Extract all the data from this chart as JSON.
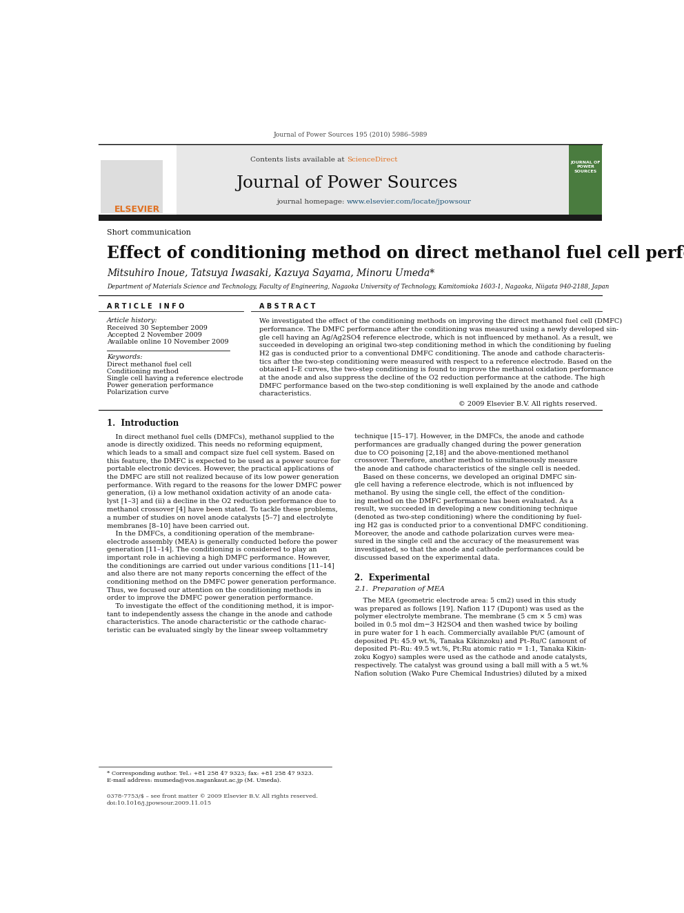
{
  "page_bg": "#ffffff",
  "header_citation": "Journal of Power Sources 195 (2010) 5986–5989",
  "journal_name": "Journal of Power Sources",
  "contents_text": "Contents lists available at ScienceDirect",
  "journal_homepage": "journal homepage: www.elsevier.com/locate/jpowsour",
  "article_type": "Short communication",
  "paper_title": "Effect of conditioning method on direct methanol fuel cell performance",
  "authors": "Mitsuhiro Inoue, Tatsuya Iwasaki, Kazuya Sayama, Minoru Umeda*",
  "affiliation": "Department of Materials Science and Technology, Faculty of Engineering, Nagaoka University of Technology, Kamitomioka 1603-1, Nagaoka, Niigata 940-2188, Japan",
  "article_info_header": "A R T I C L E   I N F O",
  "abstract_header": "A B S T R A C T",
  "article_history_label": "Article history:",
  "received": "Received 30 September 2009",
  "accepted": "Accepted 2 November 2009",
  "available": "Available online 10 November 2009",
  "keywords_label": "Keywords:",
  "keywords": [
    "Direct methanol fuel cell",
    "Conditioning method",
    "Single cell having a reference electrode",
    "Power generation performance",
    "Polarization curve"
  ],
  "abstract_text": "We investigated the effect of the conditioning methods on improving the direct methanol fuel cell (DMFC)\nperformance. The DMFC performance after the conditioning was measured using a newly developed sin-\ngle cell having an Ag/Ag2SO4 reference electrode, which is not influenced by methanol. As a result, we\nsucceeded in developing an original two-step conditioning method in which the conditioning by fueling\nH2 gas is conducted prior to a conventional DMFC conditioning. The anode and cathode characteris-\ntics after the two-step conditioning were measured with respect to a reference electrode. Based on the\nobtained I–E curves, the two-step conditioning is found to improve the methanol oxidation performance\nat the anode and also suppress the decline of the O2 reduction performance at the cathode. The high\nDMFC performance based on the two-step conditioning is well explained by the anode and cathode\ncharacteristics.",
  "copyright": "© 2009 Elsevier B.V. All rights reserved.",
  "section1_title": "1.  Introduction",
  "intro_left_p1": "    In direct methanol fuel cells (DMFCs), methanol supplied to the\nanode is directly oxidized. This needs no reforming equipment,\nwhich leads to a small and compact size fuel cell system. Based on\nthis feature, the DMFC is expected to be used as a power source for\nportable electronic devices. However, the practical applications of\nthe DMFC are still not realized because of its low power generation\nperformance. With regard to the reasons for the lower DMFC power\ngeneration, (i) a low methanol oxidation activity of an anode cata-\nlyst [1–3] and (ii) a decline in the O2 reduction performance due to\nmethanol crossover [4] have been stated. To tackle these problems,\na number of studies on novel anode catalysts [5–7] and electrolyte\nmembranes [8–10] have been carried out.",
  "intro_left_p2": "    In the DMFCs, a conditioning operation of the membrane-\nelectrode assembly (MEA) is generally conducted before the power\ngeneration [11–14]. The conditioning is considered to play an\nimportant role in achieving a high DMFC performance. However,\nthe conditionings are carried out under various conditions [11–14]\nand also there are not many reports concerning the effect of the\nconditioning method on the DMFC power generation performance.\nThus, we focused our attention on the conditioning methods in\norder to improve the DMFC power generation performance.",
  "intro_left_p3": "    To investigate the effect of the conditioning method, it is impor-\ntant to independently assess the change in the anode and cathode\ncharacteristics. The anode characteristic or the cathode charac-\nteristic can be evaluated singly by the linear sweep voltammetry",
  "intro_right_p1": "technique [15–17]. However, in the DMFCs, the anode and cathode\nperformances are gradually changed during the power generation\ndue to CO poisoning [2,18] and the above-mentioned methanol\ncrossover. Therefore, another method to simultaneously measure\nthe anode and cathode characteristics of the single cell is needed.",
  "intro_right_p2": "    Based on these concerns, we developed an original DMFC sin-\ngle cell having a reference electrode, which is not influenced by\nmethanol. By using the single cell, the effect of the condition-\ning method on the DMFC performance has been evaluated. As a\nresult, we succeeded in developing a new conditioning technique\n(denoted as two-step conditioning) where the conditioning by fuel-\ning H2 gas is conducted prior to a conventional DMFC conditioning.\nMoreover, the anode and cathode polarization curves were mea-\nsured in the single cell and the accuracy of the measurement was\ninvestigated, so that the anode and cathode performances could be\ndiscussed based on the experimental data.",
  "section2_title": "2.  Experimental",
  "section21_title": "2.1.  Preparation of MEA",
  "mea_text": "    The MEA (geometric electrode area: 5 cm2) used in this study\nwas prepared as follows [19]. Nafion 117 (Dupont) was used as the\npolymer electrolyte membrane. The membrane (5 cm × 5 cm) was\nboiled in 0.5 mol dm−3 H2SO4 and then washed twice by boiling\nin pure water for 1 h each. Commercially available Pt/C (amount of\ndeposited Pt: 45.9 wt.%, Tanaka Kikinzoku) and Pt–Ru/C (amount of\ndeposited Pt–Ru: 49.5 wt.%, Pt:Ru atomic ratio = 1:1, Tanaka Kikin-\nzoku Kogyo) samples were used as the cathode and anode catalysts,\nrespectively. The catalyst was ground using a ball mill with a 5 wt.%\nNafion solution (Wako Pure Chemical Industries) diluted by a mixed",
  "footnote_star": "* Corresponding author. Tel.: +81 258 47 9323; fax: +81 258 47 9323.",
  "footnote_email": "E-mail address: mumeda@vos.nagankaut.ac.jp (M. Umeda).",
  "footer_left": "0378-7753/$ – see front matter © 2009 Elsevier B.V. All rights reserved.",
  "footer_doi": "doi:10.1016/j.jpowsour.2009.11.015",
  "header_bar_color": "#1a1a1a",
  "sciencedirect_color": "#e07020",
  "link_color": "#1a5276",
  "elsevier_orange": "#e07020",
  "header_bg": "#e8e8e8",
  "journal_cover_bg": "#4a7c3f"
}
